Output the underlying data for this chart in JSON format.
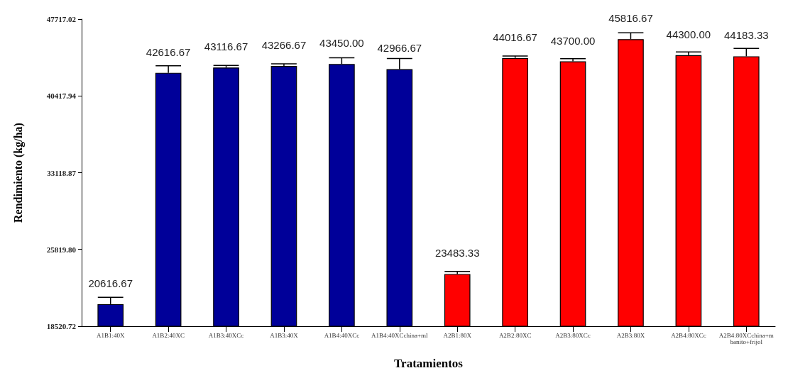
{
  "chart_data": {
    "type": "bar",
    "xlabel": "Tratamientos",
    "ylabel": "Rendimiento (kg/ha)",
    "categories": [
      "A1B1:40X",
      "A1B2:40XC",
      "A1B3:40XCc",
      "A1B3:40X",
      "A1B4:40XCc",
      "A1B4:40XCchina+ml",
      "A2B1:80X",
      "A2B2:80XC",
      "A2B3:80XCc",
      "A2B3:80X",
      "A2B4:80XCc",
      "A2B4:80XCchina+mbanito+frijol"
    ],
    "values": [
      20616.67,
      42616.67,
      43116.67,
      43266.67,
      43450.0,
      42966.67,
      23483.33,
      44016.67,
      43700.0,
      45816.67,
      44300.0,
      44183.33
    ],
    "value_labels": [
      "20616.67",
      "42616.67",
      "43116.67",
      "43266.67",
      "43450.00",
      "42966.67",
      "23483.33",
      "44016.67",
      "43700.00",
      "45816.67",
      "44300.00",
      "44183.33"
    ],
    "errors": [
      650,
      670,
      200,
      200,
      600,
      1000,
      250,
      200,
      250,
      600,
      300,
      750
    ],
    "colors": [
      "#000099",
      "#000099",
      "#000099",
      "#000099",
      "#000099",
      "#000099",
      "#ff0000",
      "#ff0000",
      "#ff0000",
      "#ff0000",
      "#ff0000",
      "#ff0000"
    ],
    "ylim": [
      18520.72,
      47717.02
    ],
    "yticks": [
      {
        "value": 18520.72,
        "label": "18520.72"
      },
      {
        "value": 25819.8,
        "label": "25819.80"
      },
      {
        "value": 33118.87,
        "label": "33118.87"
      },
      {
        "value": 40417.94,
        "label": "40417.94"
      },
      {
        "value": 47717.02,
        "label": "47717.02"
      }
    ],
    "grid": false
  }
}
